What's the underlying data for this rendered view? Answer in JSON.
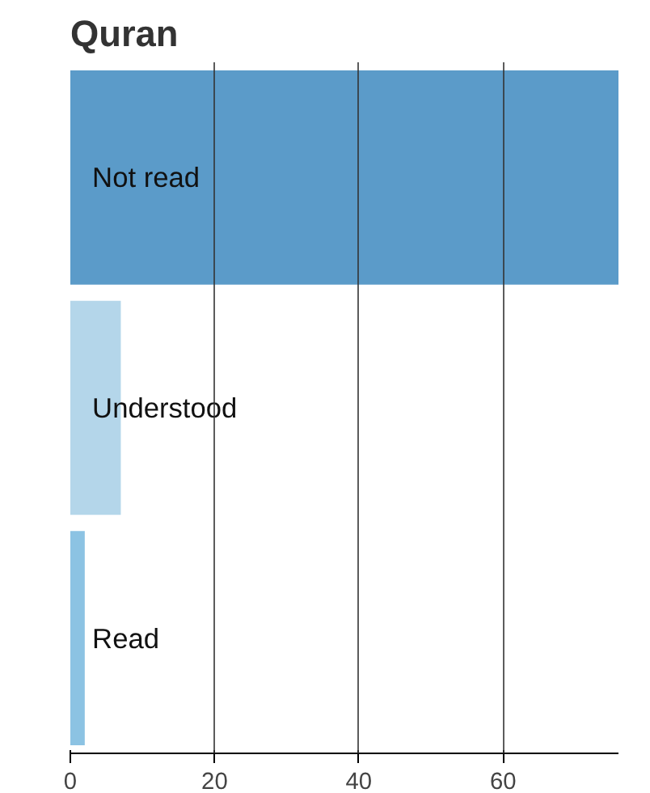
{
  "chart_data": {
    "type": "bar",
    "orientation": "horizontal",
    "title": "Quran",
    "categories": [
      "Not read",
      "Understood",
      "Read"
    ],
    "values": [
      76,
      7,
      2
    ],
    "colors": [
      "#5b9bc9",
      "#b4d6ea",
      "#8cc3e3"
    ],
    "xlim": [
      0,
      76
    ],
    "xticks": [
      0,
      20,
      40,
      60
    ],
    "grid": "x"
  }
}
